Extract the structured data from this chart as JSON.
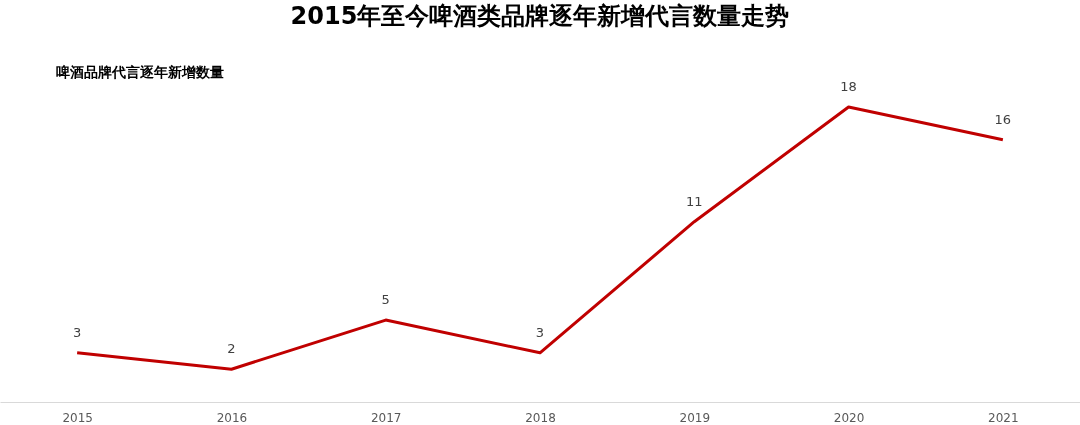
{
  "chart_data": {
    "type": "line",
    "title": "2015年至今啤酒类品牌逐年新增代言数量走势",
    "subtitle": "啤酒品牌代言逐年新增数量",
    "categories": [
      "2015",
      "2016",
      "2017",
      "2018",
      "2019",
      "2020",
      "2021"
    ],
    "series": [
      {
        "color": "#c00000",
        "values": [
          3,
          2,
          5,
          3,
          11,
          18,
          16
        ]
      }
    ],
    "data_labels": true
  }
}
